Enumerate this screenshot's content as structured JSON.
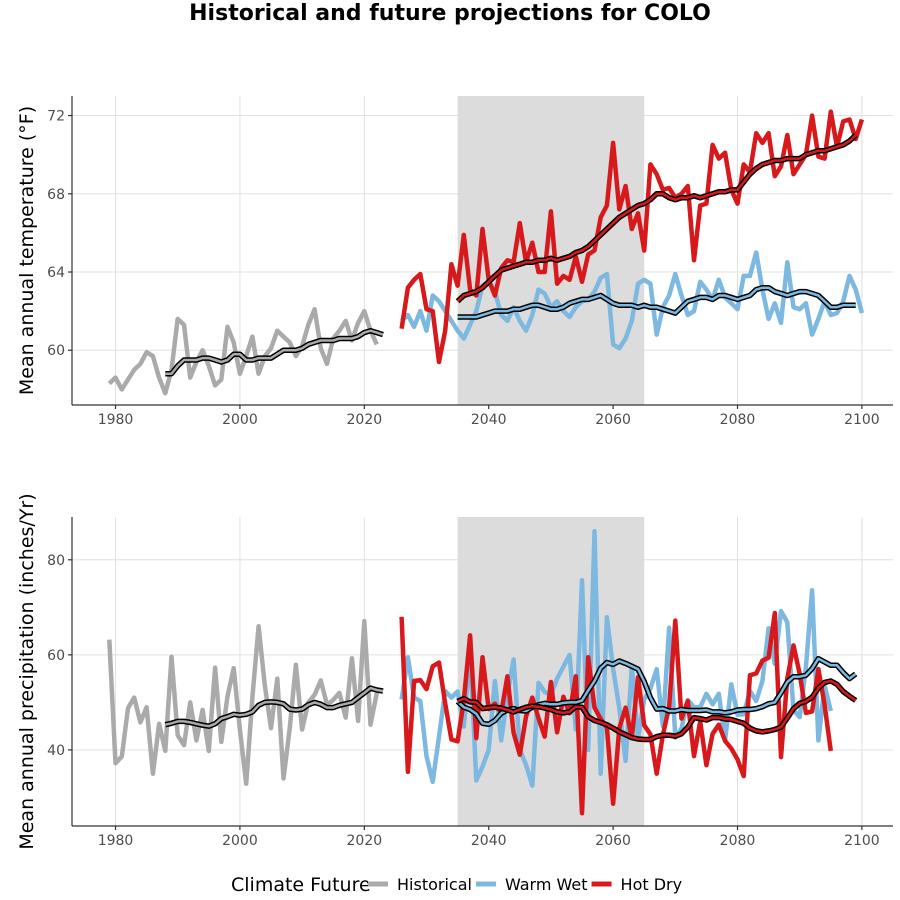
{
  "chart_data": {
    "title": "Historical and future projections for COLO",
    "legend": {
      "title": "Climate Future",
      "position": "bottom",
      "items": [
        {
          "name": "Historical",
          "color": "#aaaaaa"
        },
        {
          "name": "Warm Wet",
          "color": "#7cb8e0"
        },
        {
          "name": "Hot Dry",
          "color": "#d7191c"
        }
      ]
    },
    "shaded_period": [
      2035,
      2065
    ],
    "colors": {
      "historical": "#aaaaaa",
      "warm_wet": "#7cb8e0",
      "hot_dry": "#d7191c",
      "smooth_outline": "#000000",
      "shade": "#dcdcdc",
      "grid": "#e0e0e0"
    },
    "panels": [
      {
        "type": "line",
        "ylabel": "Mean annual temperature (°F)",
        "xlim": [
          1973,
          2105
        ],
        "ylim": [
          57.2,
          73
        ],
        "xticks": [
          1980,
          2000,
          2020,
          2040,
          2060,
          2080,
          2100
        ],
        "yticks": [
          60,
          64,
          68,
          72
        ],
        "grid": true,
        "series": [
          {
            "name": "Historical",
            "color": "#aaaaaa",
            "x_start": 1979,
            "values": [
              58.3,
              58.6,
              58.0,
              58.5,
              59.0,
              59.3,
              59.9,
              59.7,
              58.6,
              57.8,
              59.0,
              61.6,
              61.3,
              58.6,
              59.4,
              60.0,
              59.2,
              58.2,
              58.5,
              61.2,
              60.4,
              58.8,
              59.7,
              60.7,
              58.8,
              59.7,
              60.1,
              61.0,
              60.7,
              60.4,
              59.7,
              60.2,
              61.3,
              62.1,
              60.1,
              59.3,
              60.6,
              61.0,
              61.5,
              60.5,
              61.4,
              62.0,
              61.0,
              60.3
            ]
          },
          {
            "name": "Historical",
            "smooth": true,
            "x_start": 1988,
            "values": [
              58.8,
              58.8,
              59.2,
              59.5,
              59.5,
              59.5,
              59.6,
              59.6,
              59.5,
              59.4,
              59.5,
              59.8,
              59.8,
              59.5,
              59.5,
              59.6,
              59.6,
              59.6,
              59.8,
              60.0,
              60.0,
              60.0,
              60.1,
              60.3,
              60.4,
              60.5,
              60.5,
              60.5,
              60.6,
              60.6,
              60.6,
              60.7,
              60.9,
              61.0,
              60.9,
              60.8
            ]
          },
          {
            "name": "Warm Wet",
            "color": "#7cb8e0",
            "x_start": 2026,
            "values": [
              61.5,
              61.8,
              61.2,
              62.0,
              61.0,
              62.8,
              62.5,
              62.0,
              61.5,
              61.0,
              60.6,
              61.3,
              62.0,
              63.3,
              63.5,
              63.0,
              61.8,
              61.5,
              62.2,
              61.5,
              61.0,
              61.8,
              63.1,
              62.9,
              62.2,
              62.5,
              62.0,
              61.7,
              62.2,
              62.5,
              62.6,
              63.0,
              63.7,
              63.9,
              60.3,
              60.1,
              60.6,
              61.5,
              63.4,
              63.6,
              63.4,
              60.8,
              62.2,
              62.8,
              63.9,
              62.8,
              61.8,
              62.0,
              63.5,
              63.1,
              62.6,
              63.6,
              62.7,
              62.4,
              62.1,
              63.8,
              63.8,
              65.0,
              63.1,
              61.6,
              62.4,
              61.4,
              64.5,
              62.2,
              62.1,
              62.4,
              60.8,
              61.6,
              62.5,
              61.8,
              61.9,
              62.5,
              63.8,
              63.1,
              61.9
            ]
          },
          {
            "name": "Warm Wet",
            "smooth": true,
            "x_start": 2035,
            "values": [
              61.7,
              61.7,
              61.7,
              61.7,
              61.8,
              61.9,
              62.0,
              62.0,
              62.0,
              62.1,
              62.1,
              62.2,
              62.3,
              62.3,
              62.2,
              62.1,
              62.1,
              62.2,
              62.4,
              62.5,
              62.6,
              62.6,
              62.7,
              62.8,
              62.6,
              62.4,
              62.3,
              62.3,
              62.3,
              62.2,
              62.3,
              62.2,
              62.2,
              62.1,
              62.0,
              61.9,
              62.2,
              62.5,
              62.6,
              62.7,
              62.7,
              62.6,
              62.8,
              62.8,
              62.7,
              62.6,
              62.7,
              62.8,
              63.1,
              63.2,
              63.2,
              63.0,
              62.9,
              62.8,
              62.9,
              63.0,
              63.0,
              62.9,
              62.8,
              62.5,
              62.2,
              62.2,
              62.3,
              62.3,
              62.3
            ]
          },
          {
            "name": "Hot Dry",
            "color": "#d7191c",
            "x_start": 2026,
            "values": [
              61.1,
              63.2,
              63.6,
              63.9,
              62.1,
              62.0,
              59.4,
              61.0,
              64.4,
              63.3,
              65.9,
              63.1,
              62.8,
              66.2,
              63.6,
              62.8,
              64.2,
              64.6,
              64.5,
              66.5,
              64.5,
              65.5,
              64.0,
              64.0,
              67.1,
              63.4,
              63.8,
              63.6,
              64.8,
              63.5,
              64.9,
              65.1,
              66.8,
              67.4,
              70.6,
              67.2,
              68.4,
              66.2,
              67.0,
              65.1,
              69.5,
              69.0,
              68.2,
              68.3,
              67.8,
              68.0,
              68.4,
              64.6,
              67.4,
              67.5,
              70.5,
              69.8,
              70.1,
              68.2,
              67.5,
              69.5,
              69.1,
              71.1,
              70.6,
              71.1,
              68.9,
              69.4,
              71.0,
              69.0,
              69.5,
              70.0,
              72.0,
              69.9,
              69.8,
              72.2,
              70.4,
              71.7,
              71.8,
              70.8,
              71.8
            ]
          },
          {
            "name": "Hot Dry",
            "smooth": true,
            "x_start": 2035,
            "values": [
              62.5,
              62.8,
              62.9,
              63.0,
              63.2,
              63.5,
              63.8,
              64.1,
              64.2,
              64.3,
              64.4,
              64.5,
              64.5,
              64.6,
              64.6,
              64.7,
              64.6,
              64.7,
              64.8,
              65.0,
              65.1,
              65.3,
              65.6,
              65.9,
              66.2,
              66.5,
              66.8,
              67.0,
              67.2,
              67.4,
              67.5,
              67.7,
              68.0,
              68.0,
              67.8,
              67.7,
              67.8,
              67.8,
              67.9,
              67.8,
              67.9,
              68.0,
              68.1,
              68.1,
              68.2,
              68.2,
              68.6,
              69.0,
              69.3,
              69.5,
              69.6,
              69.7,
              69.7,
              69.8,
              69.8,
              69.8,
              70.0,
              70.1,
              70.2,
              70.2,
              70.3,
              70.4,
              70.5,
              70.7,
              71.0
            ]
          }
        ]
      },
      {
        "type": "line",
        "ylabel": "Mean annual precipitation (inches/Yr)",
        "xlim": [
          1973,
          2105
        ],
        "ylim": [
          24,
          89
        ],
        "xticks": [
          1980,
          2000,
          2020,
          2040,
          2060,
          2080,
          2100
        ],
        "yticks": [
          40,
          60,
          80
        ],
        "grid": true,
        "series": [
          {
            "name": "Historical",
            "color": "#aaaaaa",
            "x_start": 1979,
            "values": [
              63.2,
              37.2,
              38.6,
              48.8,
              51.0,
              45.8,
              49.0,
              35.0,
              45.5,
              39.8,
              59.6,
              43.1,
              41.0,
              50.0,
              42.0,
              48.4,
              39.8,
              57.3,
              41.7,
              51.3,
              57.2,
              44.3,
              32.9,
              51.1,
              66.0,
              53.6,
              44.6,
              55.0,
              34.0,
              44.5,
              57.9,
              44.3,
              50.0,
              51.6,
              54.6,
              49.5,
              50.5,
              52.0,
              46.8,
              59.3,
              46.1,
              67.1,
              45.3,
              52.0
            ]
          },
          {
            "name": "Historical",
            "smooth": true,
            "x_start": 1988,
            "values": [
              45.3,
              45.6,
              46.0,
              46.0,
              45.8,
              45.5,
              45.2,
              45.0,
              45.5,
              46.6,
              47.0,
              47.5,
              47.3,
              47.5,
              48.0,
              49.4,
              50.0,
              50.1,
              50.0,
              49.7,
              48.6,
              48.4,
              48.6,
              49.5,
              50.0,
              49.6,
              48.9,
              48.9,
              49.4,
              49.7,
              50.0,
              51.0,
              52.0,
              53.0,
              52.6,
              52.4
            ]
          },
          {
            "name": "Warm Wet",
            "color": "#7cb8e0",
            "x_start": 2026,
            "values": [
              50.6,
              59.5,
              51.0,
              50.3,
              38.7,
              33.3,
              42.8,
              52.4,
              51.0,
              52.3,
              44.9,
              61.0,
              33.6,
              36.5,
              40.0,
              54.5,
              42.0,
              51.6,
              59.0,
              40.0,
              36.9,
              32.5,
              54.1,
              52.2,
              51.6,
              55.0,
              57.5,
              60.0,
              44.3,
              75.7,
              40.0,
              86.0,
              35.0,
              67.9,
              57.1,
              48.8,
              37.7,
              57.5,
              42.5,
              50.6,
              52.9,
              57.0,
              45.0,
              65.7,
              42.6,
              44.5,
              50.5,
              49.0,
              49.0,
              51.8,
              49.6,
              51.8,
              42.0,
              53.8,
              47.4,
              47.5,
              52.4,
              50.3,
              54.5,
              65.6,
              58.1,
              69.2,
              66.9,
              48.4,
              46.9,
              57.4,
              73.6,
              42.0,
              53.6,
              48.2
            ]
          },
          {
            "name": "Warm Wet",
            "smooth": true,
            "x_start": 2035,
            "values": [
              50.2,
              49.0,
              48.5,
              47.6,
              45.6,
              45.4,
              46.2,
              47.7,
              48.4,
              48.7,
              48.3,
              48.2,
              49.0,
              49.5,
              49.8,
              49.6,
              49.6,
              49.9,
              50.0,
              50.0,
              50.4,
              52.5,
              54.5,
              57.2,
              58.4,
              58.0,
              58.7,
              58.2,
              57.6,
              57.0,
              54.4,
              51.0,
              48.6,
              48.7,
              48.2,
              48.2,
              48.5,
              48.3,
              48.3,
              48.3,
              48.4,
              48.0,
              48.0,
              47.8,
              48.0,
              48.4,
              48.5,
              48.5,
              48.7,
              49.1,
              49.7,
              50.0,
              52.0,
              54.3,
              55.4,
              55.4,
              55.7,
              57.1,
              59.2,
              58.5,
              57.8,
              57.8,
              56.3,
              55.0,
              56.0
            ]
          },
          {
            "name": "Hot Dry",
            "color": "#d7191c",
            "x_start": 2026,
            "values": [
              68.0,
              35.4,
              54.5,
              54.7,
              52.8,
              57.6,
              58.4,
              49.8,
              42.2,
              41.8,
              50.4,
              64.1,
              42.5,
              59.5,
              48.6,
              49.7,
              47.8,
              55.5,
              43.6,
              39.0,
              47.0,
              51.0,
              46.7,
              42.8,
              54.3,
              43.7,
              51.2,
              47.7,
              55.5,
              26.7,
              59.5,
              48.9,
              46.5,
              44.7,
              28.7,
              44.6,
              48.9,
              42.5,
              55.3,
              45.2,
              43.3,
              35.0,
              43.2,
              49.0,
              67.2,
              46.6,
              50.3,
              38.7,
              46.0,
              36.8,
              43.4,
              45.3,
              41.9,
              40.3,
              38.0,
              34.5,
              55.7,
              56.1,
              58.8,
              59.4,
              68.8,
              38.5,
              55.0,
              62.0,
              56.0,
              47.8,
              48.1,
              57.0,
              49.5,
              39.8
            ]
          },
          {
            "name": "Hot Dry",
            "smooth": true,
            "x_start": 2035,
            "values": [
              50.2,
              50.8,
              50.1,
              50.0,
              48.7,
              48.9,
              49.0,
              48.8,
              48.4,
              48.0,
              48.5,
              49.0,
              49.2,
              49.1,
              48.8,
              48.5,
              48.0,
              47.8,
              48.0,
              49.1,
              49.0,
              47.0,
              46.2,
              45.8,
              45.3,
              44.6,
              43.8,
              43.2,
              42.6,
              42.3,
              42.2,
              42.2,
              42.8,
              43.1,
              43.1,
              42.9,
              43.4,
              44.8,
              46.8,
              46.6,
              46.3,
              46.8,
              46.8,
              46.5,
              46.4,
              46.0,
              45.6,
              44.6,
              44.0,
              43.8,
              44.0,
              44.3,
              44.8,
              46.7,
              48.7,
              49.8,
              50.2,
              51.1,
              53.0,
              54.2,
              54.5,
              53.8,
              52.3,
              51.3,
              50.4
            ]
          }
        ]
      }
    ]
  }
}
